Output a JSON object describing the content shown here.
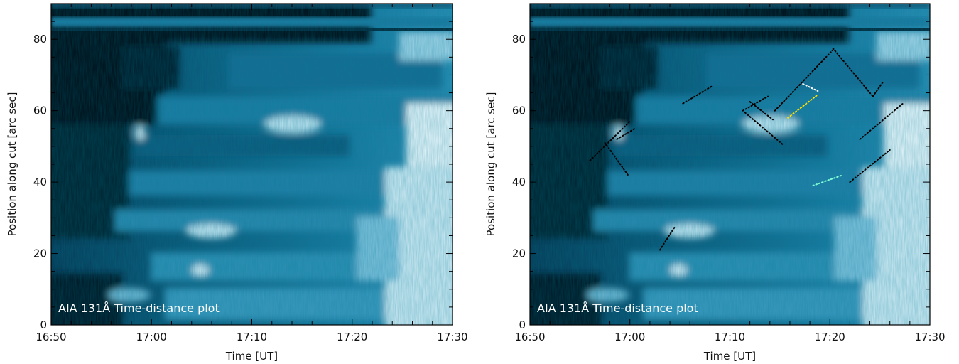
{
  "chart_data": [
    {
      "type": "heatmap",
      "colormap": "AIA 131 (black-teal-white)",
      "annotation": "AIA 131Å Time-distance plot",
      "xlabel": "Time [UT]",
      "ylabel": "Position along cut [arc sec]",
      "x_tick_labels": [
        "16:50",
        "17:00",
        "17:10",
        "17:20",
        "17:30"
      ],
      "y_tick_labels": [
        "0",
        "20",
        "40",
        "60",
        "80"
      ],
      "xlim_minutes_after_1650": [
        0,
        40
      ],
      "ylim": [
        0,
        90
      ],
      "grid": false,
      "tracks": []
    },
    {
      "type": "heatmap",
      "colormap": "AIA 131 (black-teal-white)",
      "annotation": "AIA 131Å Time-distance plot",
      "xlabel": "Time [UT]",
      "ylabel": "Position along cut [arc sec]",
      "x_tick_labels": [
        "16:50",
        "17:00",
        "17:10",
        "17:20",
        "17:30"
      ],
      "y_tick_labels": [
        "0",
        "20",
        "40",
        "60",
        "80"
      ],
      "xlim_minutes_after_1650": [
        0,
        40
      ],
      "ylim": [
        0,
        90
      ],
      "grid": false,
      "tracks": [
        {
          "color": "#000000",
          "points": [
            [
              6.0,
              46.0
            ],
            [
              10.0,
              57.0
            ]
          ]
        },
        {
          "color": "#000000",
          "points": [
            [
              7.5,
              51.0
            ],
            [
              9.8,
              42.0
            ]
          ]
        },
        {
          "color": "#000000",
          "points": [
            [
              8.7,
              52.0
            ],
            [
              10.5,
              55.0
            ]
          ]
        },
        {
          "color": "#000000",
          "points": [
            [
              15.3,
              62.0
            ],
            [
              18.3,
              67.0
            ]
          ]
        },
        {
          "color": "#000000",
          "points": [
            [
              21.3,
              60.0
            ],
            [
              23.8,
              64.0
            ]
          ]
        },
        {
          "color": "#000000",
          "points": [
            [
              21.5,
              59.5
            ],
            [
              25.3,
              50.5
            ]
          ]
        },
        {
          "color": "#000000",
          "points": [
            [
              22.0,
              62.5
            ],
            [
              24.3,
              57.5
            ]
          ]
        },
        {
          "color": "#000000",
          "points": [
            [
              24.5,
              60.0
            ],
            [
              30.3,
              77.0
            ]
          ]
        },
        {
          "color": "#000000",
          "points": [
            [
              30.3,
              77.5
            ],
            [
              34.3,
              64.0
            ]
          ]
        },
        {
          "color": "#000000",
          "points": [
            [
              34.3,
              64.0
            ],
            [
              35.3,
              68.0
            ]
          ]
        },
        {
          "color": "#000000",
          "points": [
            [
              33.0,
              52.0
            ],
            [
              37.3,
              62.0
            ]
          ]
        },
        {
          "color": "#000000",
          "points": [
            [
              32.0,
              40.0
            ],
            [
              36.0,
              49.0
            ]
          ]
        },
        {
          "color": "#000000",
          "points": [
            [
              13.0,
              21.0
            ],
            [
              14.5,
              27.5
            ]
          ]
        },
        {
          "color": "#ffffff",
          "points": [
            [
              27.3,
              67.5
            ],
            [
              28.8,
              65.5
            ]
          ]
        },
        {
          "color": "#ffe000",
          "points": [
            [
              25.8,
              58.0
            ],
            [
              28.8,
              64.5
            ]
          ]
        },
        {
          "color": "#7fffd4",
          "points": [
            [
              28.3,
              39.0
            ],
            [
              31.3,
              42.0
            ]
          ]
        }
      ]
    }
  ]
}
